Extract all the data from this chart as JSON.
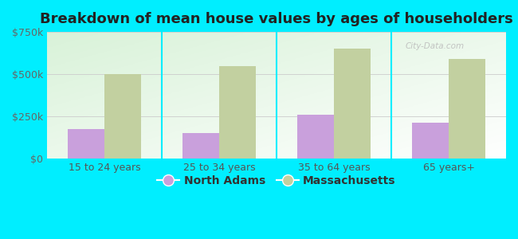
{
  "title": "Breakdown of mean house values by ages of householders",
  "categories": [
    "15 to 24 years",
    "25 to 34 years",
    "35 to 64 years",
    "65 years+"
  ],
  "north_adams": [
    175000,
    150000,
    260000,
    210000
  ],
  "massachusetts": [
    500000,
    545000,
    650000,
    590000
  ],
  "north_adams_color": "#c9a0dc",
  "massachusetts_color": "#c2d0a0",
  "background_color": "#00eeff",
  "ylim": [
    0,
    750000
  ],
  "yticks": [
    0,
    250000,
    500000,
    750000
  ],
  "ytick_labels": [
    "$0",
    "$250k",
    "$500k",
    "$750k"
  ],
  "legend_labels": [
    "North Adams",
    "Massachusetts"
  ],
  "bar_width": 0.32,
  "title_fontsize": 13,
  "tick_fontsize": 9,
  "legend_fontsize": 10,
  "watermark": "City-Data.com"
}
